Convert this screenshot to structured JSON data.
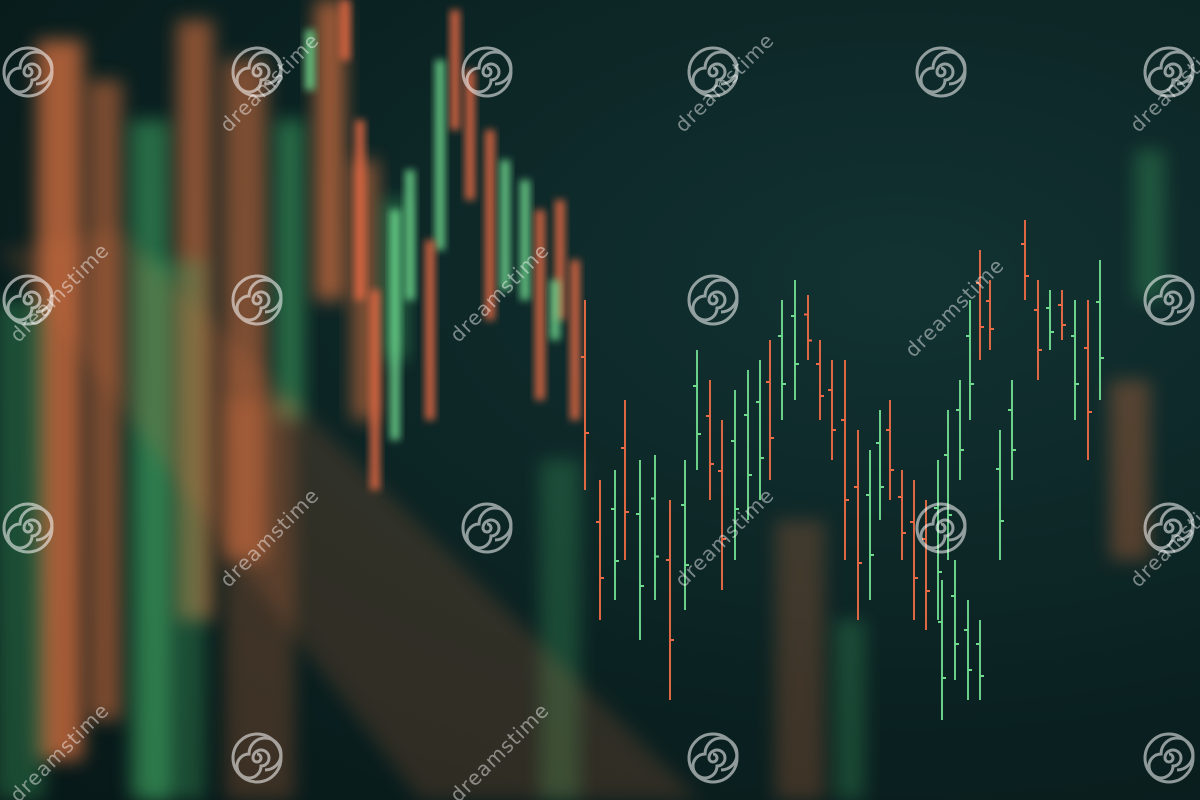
{
  "image": {
    "subject": "stock candlestick bar chart on monitor",
    "colors": {
      "background": "#0d2525",
      "bull": "#6fd98e",
      "bear": "#ea6b45",
      "glow_orange": "#d9713f",
      "glow_green": "#3fa763"
    }
  },
  "watermark": {
    "text": "dreamstime",
    "logo_icon": "spiral-icon"
  }
}
